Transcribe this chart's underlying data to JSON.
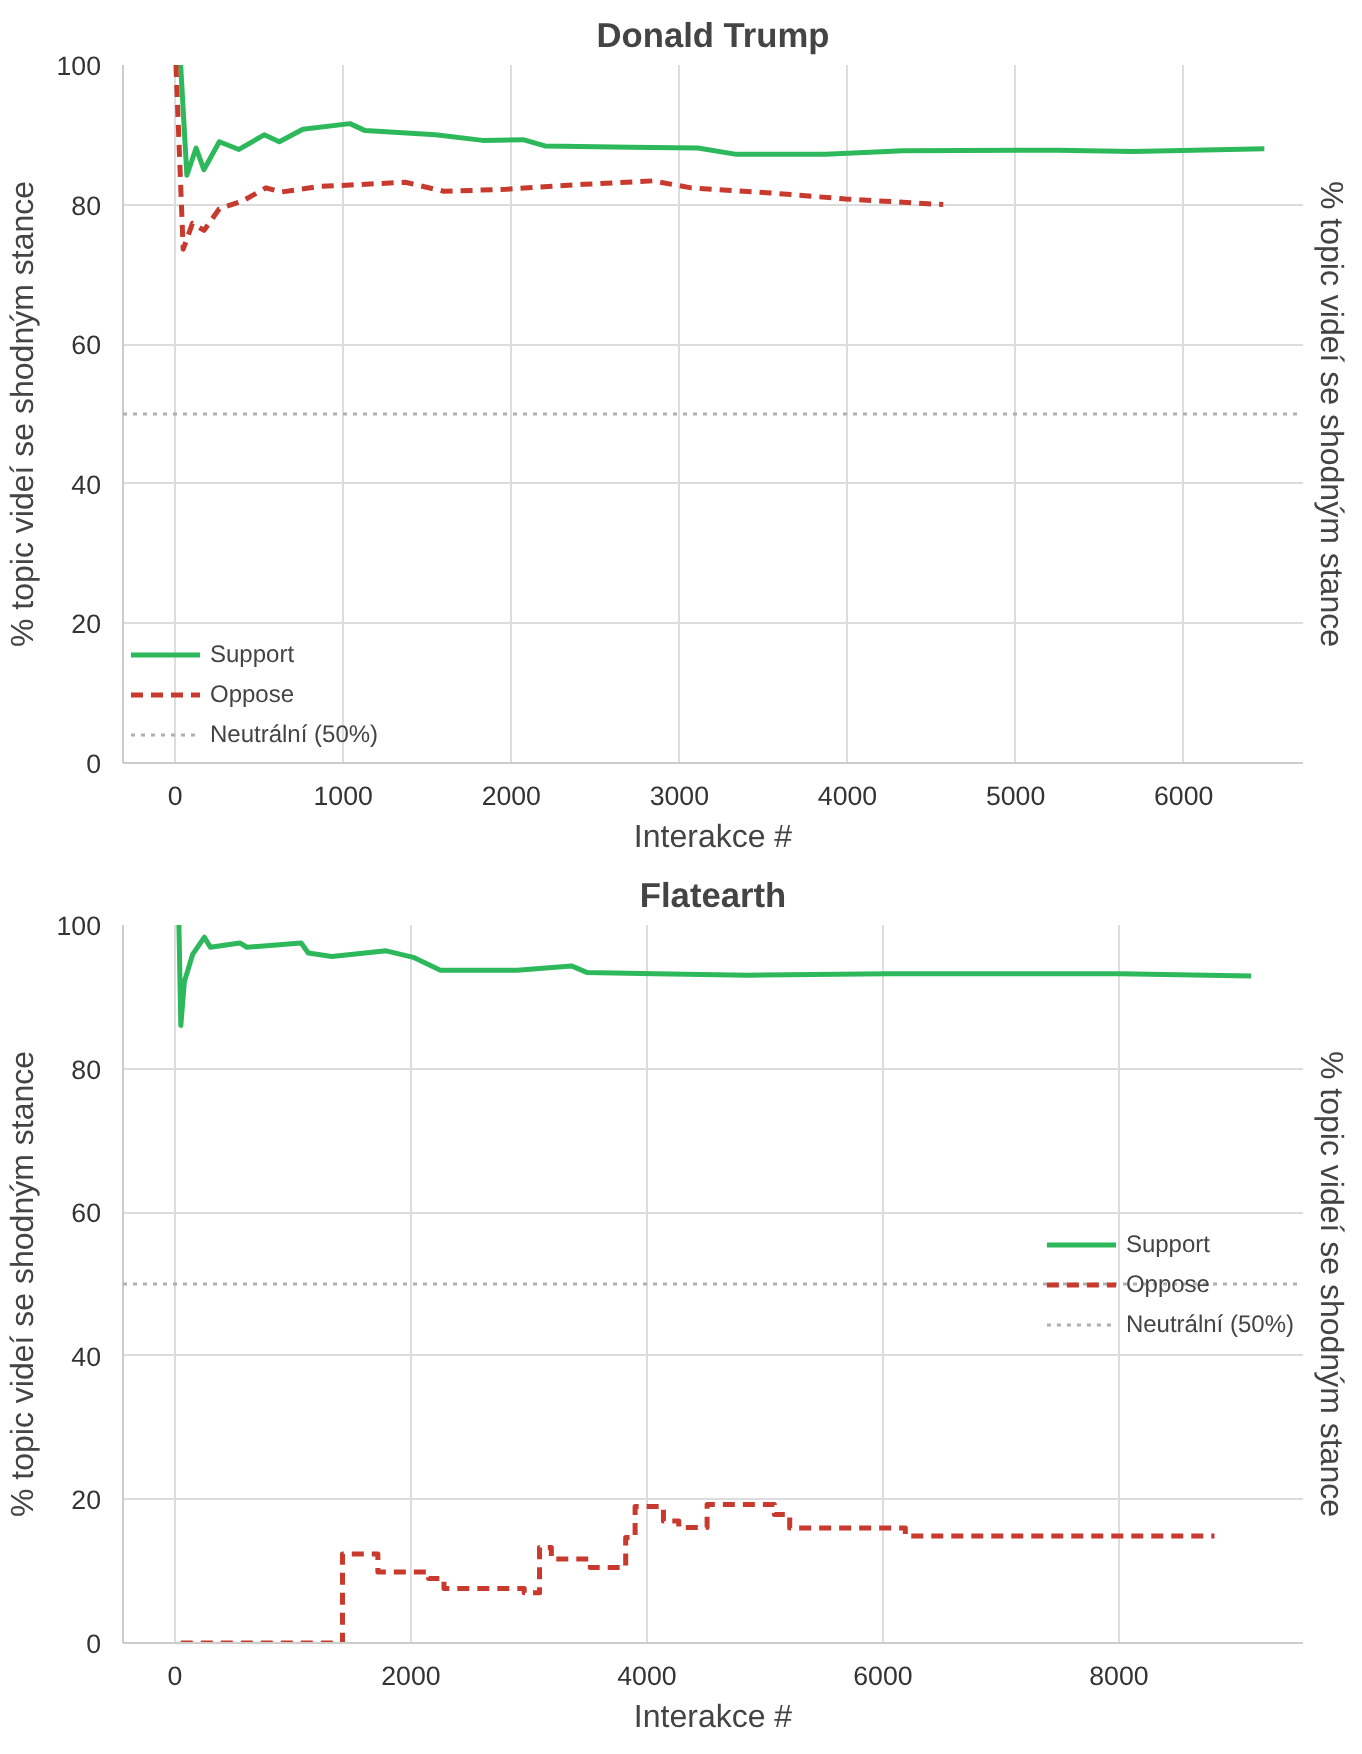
{
  "chart_data": [
    {
      "type": "line",
      "title": "Donald Trump",
      "xlabel": "Interakce #",
      "ylabel": "% topic videí se shodným stance",
      "y2label": "% topic videí se shodným stance",
      "xlim": [
        -310,
        6710
      ],
      "ylim": [
        0,
        100
      ],
      "xticks": [
        0,
        1000,
        2000,
        3000,
        4000,
        5000,
        6000
      ],
      "yticks": [
        0,
        20,
        40,
        60,
        80,
        100
      ],
      "grid": true,
      "legend": "bottom left",
      "series": [
        {
          "name": "Support",
          "color": "#2eb85c",
          "line_style": "solid",
          "x": [
            10,
            33,
            70,
            125,
            171,
            263,
            380,
            530,
            620,
            760,
            1040,
            1130,
            1550,
            1830,
            2070,
            2200,
            2710,
            3110,
            3340,
            3870,
            4330,
            5250,
            5700,
            6480
          ],
          "values": [
            100,
            100,
            84.2,
            88.1,
            85,
            89,
            87.9,
            90.0,
            89,
            90.8,
            91.6,
            90.6,
            90.0,
            89.2,
            89.3,
            88.4,
            88.2,
            88.1,
            87.2,
            87.2,
            87.7,
            87.8,
            87.6,
            88.0
          ]
        },
        {
          "name": "Oppose",
          "color": "#c8392e",
          "line_style": "dashed",
          "x": [
            5,
            48,
            103,
            172,
            263,
            400,
            540,
            630,
            860,
            1040,
            1370,
            1600,
            1970,
            2430,
            2840,
            3070,
            3580,
            3990,
            4570
          ],
          "values": [
            100,
            73.6,
            77.3,
            76.3,
            79.4,
            80.5,
            82.4,
            81.8,
            82.6,
            82.8,
            83.2,
            81.9,
            82.2,
            82.9,
            83.4,
            82.4,
            81.6,
            80.8,
            80.0
          ]
        }
      ],
      "ref_lines": [
        {
          "axis": "y",
          "value": 50,
          "label": "Neutrální (50%)",
          "color": "#b0b0b0",
          "line_style": "dotted"
        }
      ]
    },
    {
      "type": "line",
      "title": "Flatearth",
      "xlabel": "Interakce #",
      "ylabel": "% topic videí se shodným stance",
      "y2label": "% topic videí se shodným stance",
      "xlim": [
        -440,
        9560
      ],
      "ylim": [
        0,
        100
      ],
      "xticks": [
        0,
        2000,
        4000,
        6000,
        8000
      ],
      "yticks": [
        0,
        20,
        40,
        60,
        80,
        100
      ],
      "grid": true,
      "legend": "right",
      "series": [
        {
          "name": "Support",
          "color": "#2eb85c",
          "line_style": "solid",
          "x": [
            34,
            50,
            80,
            150,
            250,
            300,
            550,
            610,
            1070,
            1130,
            1330,
            1790,
            2020,
            2250,
            2900,
            3360,
            3490,
            4070,
            4860,
            6040,
            8010,
            9120
          ],
          "values": [
            100,
            86,
            92.1,
            95.9,
            98.3,
            96.9,
            97.5,
            96.9,
            97.5,
            96.1,
            95.6,
            96.4,
            95.5,
            93.7,
            93.7,
            94.3,
            93.4,
            93.2,
            93.0,
            93.2,
            93.2,
            92.9
          ]
        },
        {
          "name": "Oppose",
          "type": "step",
          "color": "#c8392e",
          "line_style": "dashed",
          "x": [
            50,
            1420,
            1720,
            2150,
            2280,
            2960,
            3090,
            3190,
            3520,
            3820,
            3900,
            4140,
            4270,
            4510,
            5080,
            5210,
            6190,
            8810
          ],
          "values": [
            0,
            12.4,
            9.9,
            9,
            7.6,
            7.0,
            13.3,
            11.7,
            10.5,
            14.7,
            19.0,
            17.0,
            16.1,
            19.3,
            17.9,
            16.0,
            14.9,
            14.9
          ]
        }
      ],
      "ref_lines": [
        {
          "axis": "y",
          "value": 50,
          "label": "Neutrální (50%)",
          "color": "#b0b0b0",
          "line_style": "dotted"
        }
      ]
    }
  ]
}
